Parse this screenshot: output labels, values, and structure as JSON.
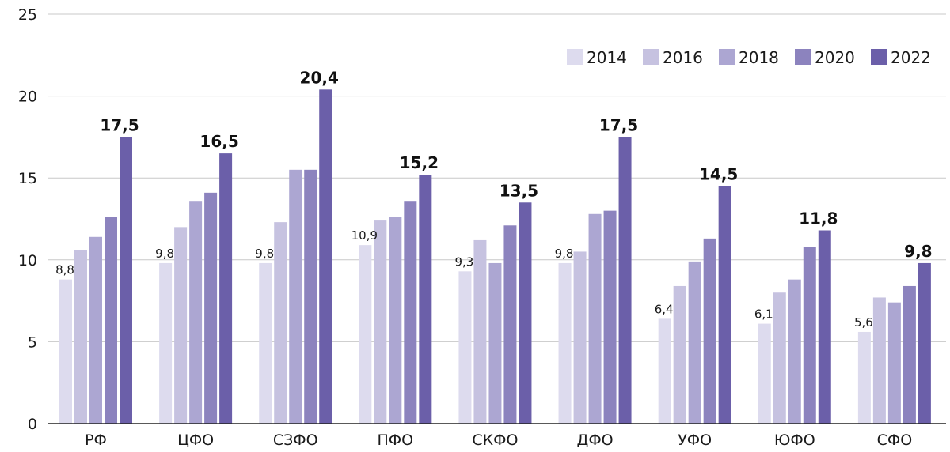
{
  "chart_data": {
    "type": "bar",
    "categories": [
      "РФ",
      "ЦФО",
      "СЗФО",
      "ПФО",
      "СКФО",
      "ДФО",
      "УФО",
      "ЮФО",
      "СФО"
    ],
    "series": [
      {
        "name": "2014",
        "color": "#dddbee",
        "values": [
          8.8,
          9.8,
          9.8,
          10.9,
          9.3,
          9.8,
          6.4,
          6.1,
          5.6
        ]
      },
      {
        "name": "2016",
        "color": "#c6c2e0",
        "values": [
          10.6,
          12.0,
          12.3,
          12.4,
          11.2,
          10.5,
          8.4,
          8.0,
          7.7
        ]
      },
      {
        "name": "2018",
        "color": "#aca6d2",
        "values": [
          11.4,
          13.6,
          15.5,
          12.6,
          9.8,
          12.8,
          9.9,
          8.8,
          7.4
        ]
      },
      {
        "name": "2020",
        "color": "#8c83be",
        "values": [
          12.6,
          14.1,
          15.5,
          13.6,
          12.1,
          13.0,
          11.3,
          10.8,
          8.4
        ]
      },
      {
        "name": "2022",
        "color": "#6b5fa9",
        "values": [
          17.5,
          16.5,
          20.4,
          15.2,
          13.5,
          17.5,
          14.5,
          11.8,
          9.8
        ]
      }
    ],
    "first_labels": [
      "8,8",
      "9,8",
      "9,8",
      "10,9",
      "9,3",
      "9,8",
      "6,4",
      "6,1",
      "5,6"
    ],
    "last_labels": [
      "17,5",
      "16,5",
      "20,4",
      "15,2",
      "13,5",
      "17,5",
      "14,5",
      "11,8",
      "9,8"
    ],
    "y_ticks": [
      "0",
      "5",
      "10",
      "15",
      "20",
      "25"
    ],
    "ylim": [
      0,
      25
    ],
    "grid": true,
    "legend_position": "top-right"
  }
}
